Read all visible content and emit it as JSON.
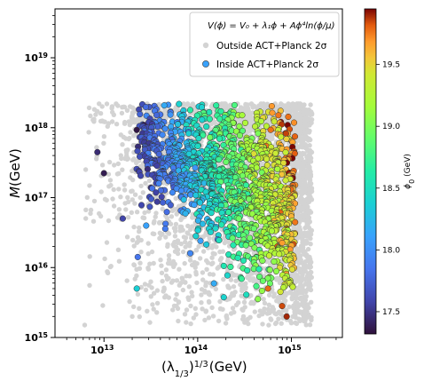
{
  "chart_data": {
    "type": "scatter",
    "xlabel": "(λ",
    "xlabel_sub": "1/3",
    "xlabel_tail": ")",
    "xlabel_sup": "1/3",
    "xlabel_unit": "(GeV)",
    "ylabel": "M",
    "ylabel_unit": "(GeV)",
    "xscale": "log",
    "yscale": "log",
    "xlim": [
      3000000000000.0,
      3500000000000000.0
    ],
    "ylim": [
      1000000000000000.0,
      5e+19
    ],
    "x_ticks": [
      {
        "value": 10000000000000.0,
        "base": "10",
        "exp": "13"
      },
      {
        "value": 100000000000000.0,
        "base": "10",
        "exp": "14"
      },
      {
        "value": 1000000000000000.0,
        "base": "10",
        "exp": "15"
      }
    ],
    "y_ticks": [
      {
        "value": 1000000000000000.0,
        "base": "10",
        "exp": "15"
      },
      {
        "value": 1e+16,
        "base": "10",
        "exp": "16"
      },
      {
        "value": 1e+17,
        "base": "10",
        "exp": "17"
      },
      {
        "value": 1e+18,
        "base": "10",
        "exp": "18"
      },
      {
        "value": 1e+19,
        "base": "10",
        "exp": "19"
      }
    ],
    "grid": false,
    "legend_position": "top-right",
    "formula": "V(ϕ) = V₀ + λ₁ϕ + Aϕ⁴ln(ϕ/μ)",
    "series": [
      {
        "name": "Outside ACT+Planck 2σ",
        "color": "#d3d3d3",
        "x_range": [
          6000000000000.0,
          1600000000000000.0
        ],
        "y_range": [
          1500000000000000.0,
          2.2e+18
        ]
      },
      {
        "name": "Inside ACT+Planck 2σ",
        "color_mapped": true,
        "x_range": [
          22000000000000.0,
          1100000000000000.0
        ],
        "y_range": [
          3000000000000000.0,
          2.2e+18
        ]
      }
    ],
    "colorbar": {
      "label": "ϕ₀ (GeV)",
      "label_base": "ϕ",
      "label_sub": "0",
      "label_unit": "(GeV)",
      "range": [
        17.32,
        19.95
      ],
      "colormap": "turbo",
      "ticks": [
        "17.5",
        "18.0",
        "18.5",
        "19.0",
        "19.5"
      ],
      "tick_values": [
        17.5,
        18.0,
        18.5,
        19.0,
        19.5
      ]
    }
  }
}
